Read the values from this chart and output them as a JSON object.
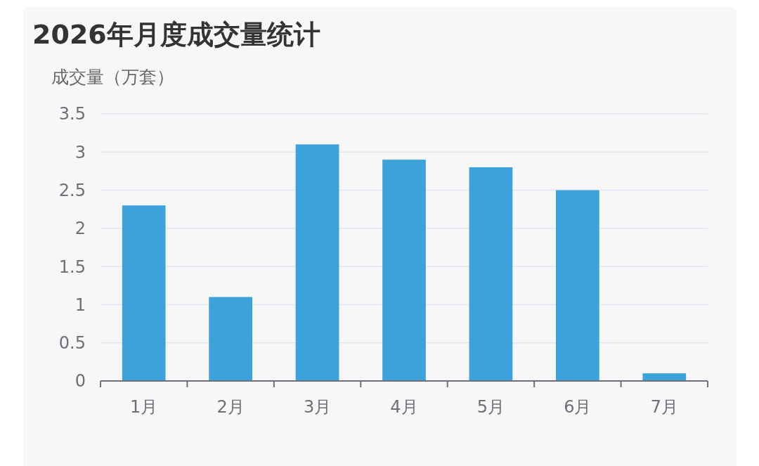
{
  "chart_data": {
    "type": "bar",
    "title": "2026年月度成交量统计",
    "ylabel": "成交量（万套）",
    "categories": [
      "1月",
      "2月",
      "3月",
      "4月",
      "5月",
      "6月",
      "7月"
    ],
    "values": [
      2.3,
      1.1,
      3.1,
      2.9,
      2.8,
      2.5,
      0.1
    ],
    "color": "#3ba2db",
    "ylim": [
      0,
      3.5
    ],
    "yticks": [
      0,
      0.5,
      1,
      1.5,
      2,
      2.5,
      3,
      3.5
    ],
    "grid": true
  }
}
